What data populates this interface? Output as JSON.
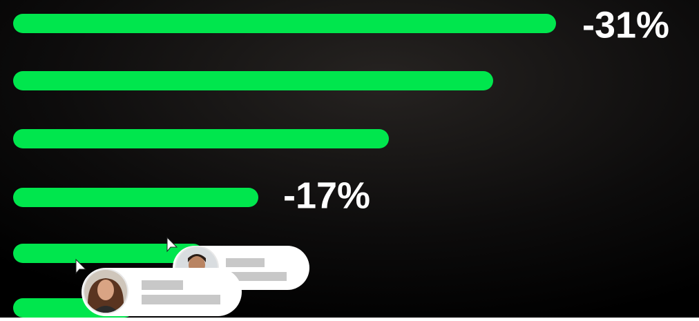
{
  "labels": [
    "-31%",
    "-17%"
  ]
}
